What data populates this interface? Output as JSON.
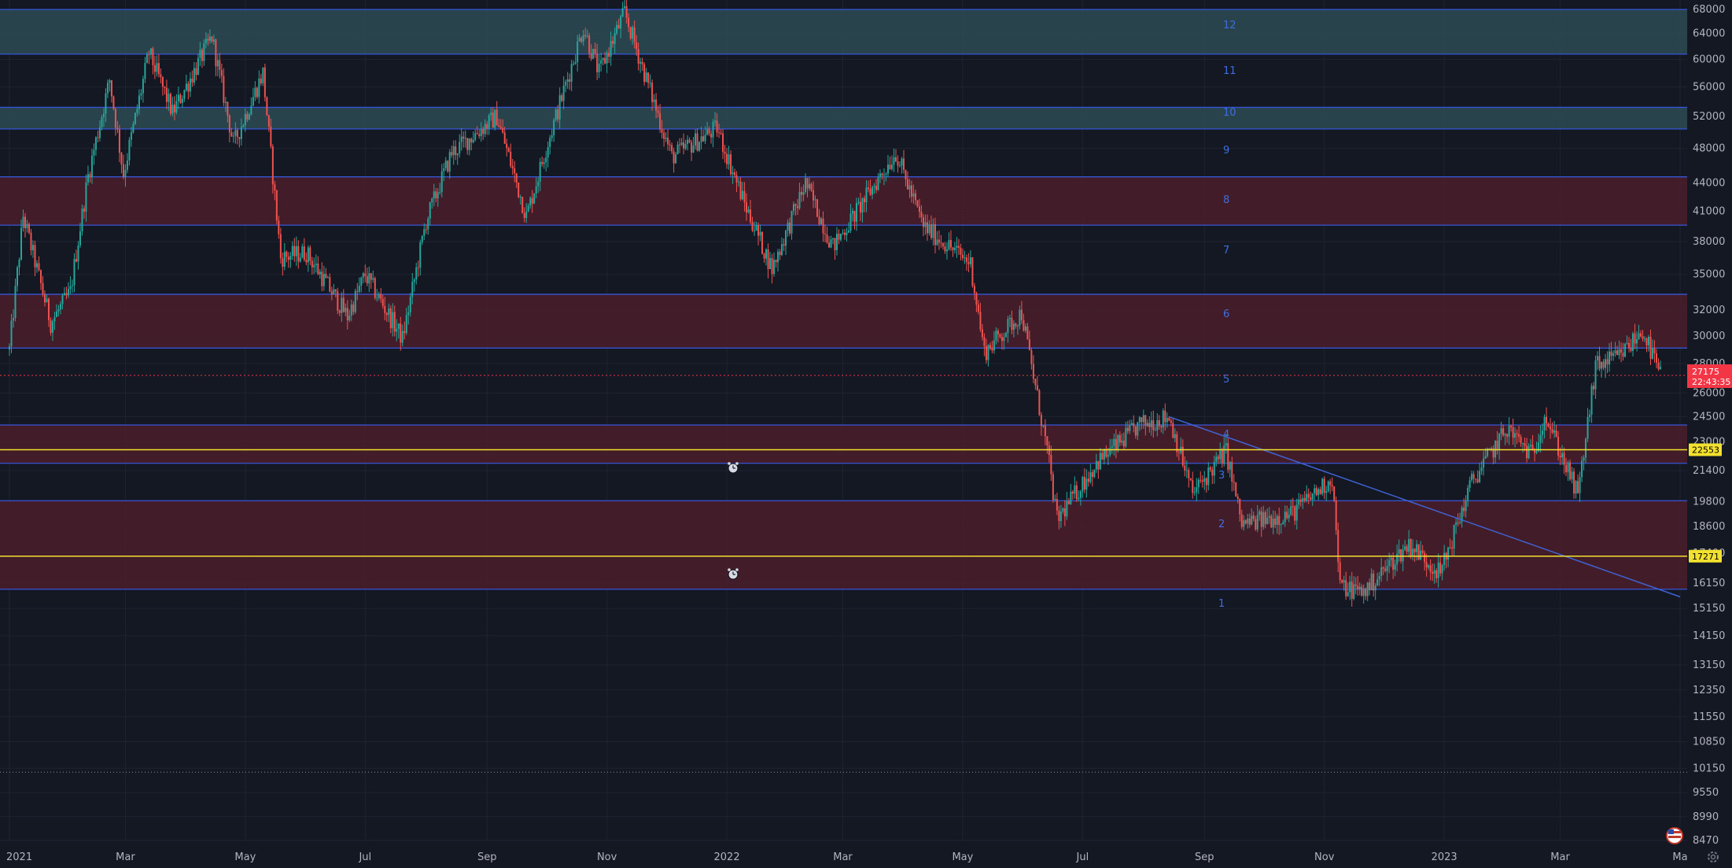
{
  "chart_data": {
    "type": "candlestick",
    "price_scale": "log",
    "ylim": [
      8470,
      68000
    ],
    "y_ticks": [
      "68000",
      "64000",
      "60000",
      "56000",
      "52000",
      "48000",
      "44000",
      "41000",
      "38000",
      "35000",
      "32000",
      "30000",
      "28000",
      "26000",
      "24500",
      "23000",
      "21400",
      "19800",
      "18600",
      "17400",
      "16150",
      "15150",
      "14150",
      "13150",
      "12350",
      "11550",
      "10850",
      "10150",
      "9550",
      "8990",
      "8470"
    ],
    "x_axis": [
      {
        "label": "2021",
        "date": "2021-01-01"
      },
      {
        "label": "Mar",
        "date": "2021-03-01"
      },
      {
        "label": "May",
        "date": "2021-05-01"
      },
      {
        "label": "Jul",
        "date": "2021-07-01"
      },
      {
        "label": "Sep",
        "date": "2021-09-01"
      },
      {
        "label": "Nov",
        "date": "2021-11-01"
      },
      {
        "label": "2022",
        "date": "2022-01-01"
      },
      {
        "label": "Mar",
        "date": "2022-03-01"
      },
      {
        "label": "May",
        "date": "2022-05-01"
      },
      {
        "label": "Jul",
        "date": "2022-07-01"
      },
      {
        "label": "Sep",
        "date": "2022-09-01"
      },
      {
        "label": "Nov",
        "date": "2022-11-01"
      },
      {
        "label": "2023",
        "date": "2023-01-01"
      },
      {
        "label": "Mar",
        "date": "2023-03-01"
      },
      {
        "label": "Ma",
        "date": "2023-05-01"
      }
    ],
    "price_path": [
      [
        "2021-01-01",
        29000
      ],
      [
        "2021-01-08",
        40500
      ],
      [
        "2021-01-22",
        31000
      ],
      [
        "2021-02-01",
        33500
      ],
      [
        "2021-02-10",
        44800
      ],
      [
        "2021-02-21",
        57000
      ],
      [
        "2021-02-28",
        45000
      ],
      [
        "2021-03-13",
        61000
      ],
      [
        "2021-03-25",
        52500
      ],
      [
        "2021-04-14",
        63500
      ],
      [
        "2021-04-25",
        48500
      ],
      [
        "2021-05-10",
        58000
      ],
      [
        "2021-05-19",
        36500
      ],
      [
        "2021-06-01",
        37000
      ],
      [
        "2021-06-22",
        31500
      ],
      [
        "2021-07-01",
        35000
      ],
      [
        "2021-07-20",
        29800
      ],
      [
        "2021-08-01",
        40000
      ],
      [
        "2021-08-14",
        47500
      ],
      [
        "2021-09-06",
        52000
      ],
      [
        "2021-09-21",
        40500
      ],
      [
        "2021-10-01",
        48000
      ],
      [
        "2021-10-20",
        65000
      ],
      [
        "2021-10-28",
        58000
      ],
      [
        "2021-11-10",
        67500
      ],
      [
        "2021-11-20",
        58000
      ],
      [
        "2021-12-04",
        47000
      ],
      [
        "2021-12-27",
        50500
      ],
      [
        "2022-01-10",
        41800
      ],
      [
        "2022-01-24",
        35500
      ],
      [
        "2022-02-10",
        44000
      ],
      [
        "2022-02-24",
        37500
      ],
      [
        "2022-03-28",
        47500
      ],
      [
        "2022-04-11",
        39500
      ],
      [
        "2022-05-05",
        36000
      ],
      [
        "2022-05-12",
        28800
      ],
      [
        "2022-05-31",
        31800
      ],
      [
        "2022-06-13",
        22500
      ],
      [
        "2022-06-18",
        18900
      ],
      [
        "2022-07-08",
        21800
      ],
      [
        "2022-07-30",
        24000
      ],
      [
        "2022-08-14",
        24500
      ],
      [
        "2022-08-26",
        20200
      ],
      [
        "2022-09-12",
        22500
      ],
      [
        "2022-09-20",
        18700
      ],
      [
        "2022-10-15",
        19200
      ],
      [
        "2022-11-05",
        21000
      ],
      [
        "2022-11-09",
        16000
      ],
      [
        "2022-11-21",
        15800
      ],
      [
        "2022-12-14",
        17800
      ],
      [
        "2022-12-30",
        16550
      ],
      [
        "2023-01-15",
        20800
      ],
      [
        "2023-02-02",
        23800
      ],
      [
        "2023-02-15",
        22200
      ],
      [
        "2023-02-21",
        24700
      ],
      [
        "2023-03-10",
        20100
      ],
      [
        "2023-03-19",
        27800
      ],
      [
        "2023-03-31",
        28500
      ],
      [
        "2023-04-12",
        30400
      ],
      [
        "2023-04-21",
        27175
      ]
    ],
    "zones": [
      {
        "label": "12",
        "low": 60800,
        "high": 68000,
        "color": "#2d4b55"
      },
      {
        "label": "11",
        "low": 60800,
        "high": 60800,
        "color": "none"
      },
      {
        "label": "10",
        "low": 50400,
        "high": 53200,
        "color": "#2d4b55"
      },
      {
        "label": "9",
        "low": 50400,
        "high": 50400,
        "color": "none"
      },
      {
        "label": "8",
        "low": 39600,
        "high": 44700,
        "color": "#4a1f2a"
      },
      {
        "label": "7",
        "low": 39600,
        "high": 39600,
        "color": "none"
      },
      {
        "label": "6",
        "low": 29100,
        "high": 33300,
        "color": "#4a1f2a"
      },
      {
        "label": "5",
        "low": 29100,
        "high": 29100,
        "color": "none"
      },
      {
        "label": "4",
        "low": 21800,
        "high": 24000,
        "color": "#4a1f2a"
      },
      {
        "label": "3",
        "low": 19850,
        "high": 19850,
        "color": "none"
      },
      {
        "label": "2",
        "low": 15900,
        "high": 19850,
        "color": "#4a1f2a"
      },
      {
        "label": "1",
        "low": 15900,
        "high": 15900,
        "color": "none"
      }
    ],
    "zone_boundaries": [
      68000,
      60800,
      53200,
      50400,
      44700,
      39600,
      33300,
      29100,
      24000,
      21800,
      19850,
      15900
    ],
    "levels": [
      {
        "value": 22553,
        "label": "22553",
        "color": "#f2e12e"
      },
      {
        "value": 17271,
        "label": "17271",
        "color": "#f2e12e"
      }
    ],
    "current_price": {
      "value": 27175,
      "label": "27175",
      "countdown": "22:43:35",
      "color": "#f23645"
    },
    "trendline": {
      "from": [
        "2022-08-14",
        24500
      ],
      "to": [
        "2023-05-01",
        15600
      ],
      "color": "#3f63d4"
    },
    "dotted_level": 10050,
    "colors": {
      "up": "#26a69a",
      "down": "#ef5350",
      "zone_line": "#3555d6",
      "background": "#141823",
      "grid": "#1e2330"
    }
  },
  "icons": {
    "alarm_1": "alarm-clock-icon",
    "alarm_2": "alarm-clock-icon",
    "flag": "us-flag-icon",
    "settings": "gear-icon"
  }
}
